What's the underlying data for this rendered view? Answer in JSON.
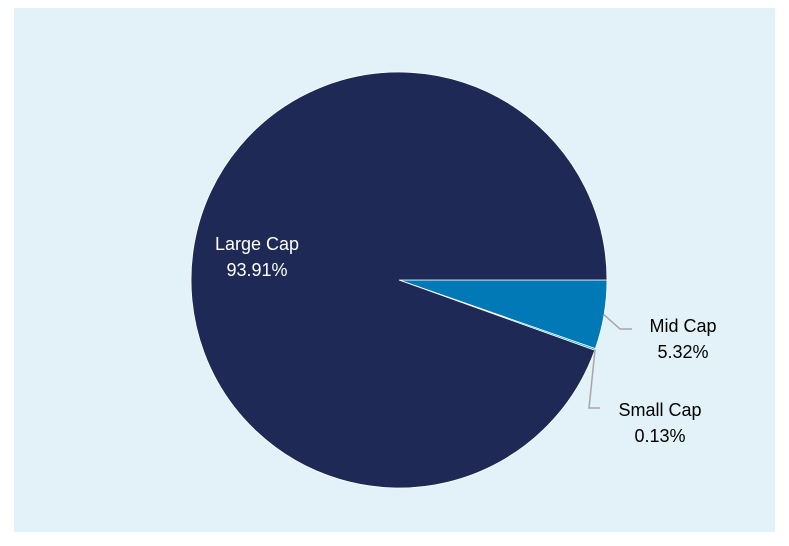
{
  "colors": {
    "panel_background": "#e2f2f8",
    "outer_background": "#ffffff",
    "leader_line": "#a6a6a6"
  },
  "chart_data": {
    "type": "pie",
    "title": "",
    "start_angle_deg": 90,
    "direction": "clockwise",
    "slices": [
      {
        "label": "Mid Cap",
        "value": 5.32,
        "display": "5.32%",
        "color": "#0079b6",
        "label_color": "#000000"
      },
      {
        "label": "Small Cap",
        "value": 0.13,
        "display": "0.13%",
        "color": "#00a5dd",
        "label_color": "#000000"
      },
      {
        "label": "Large Cap",
        "value": 93.91,
        "display": "93.91%",
        "color": "#1e2a55",
        "label_color": "#ffffff"
      }
    ]
  }
}
